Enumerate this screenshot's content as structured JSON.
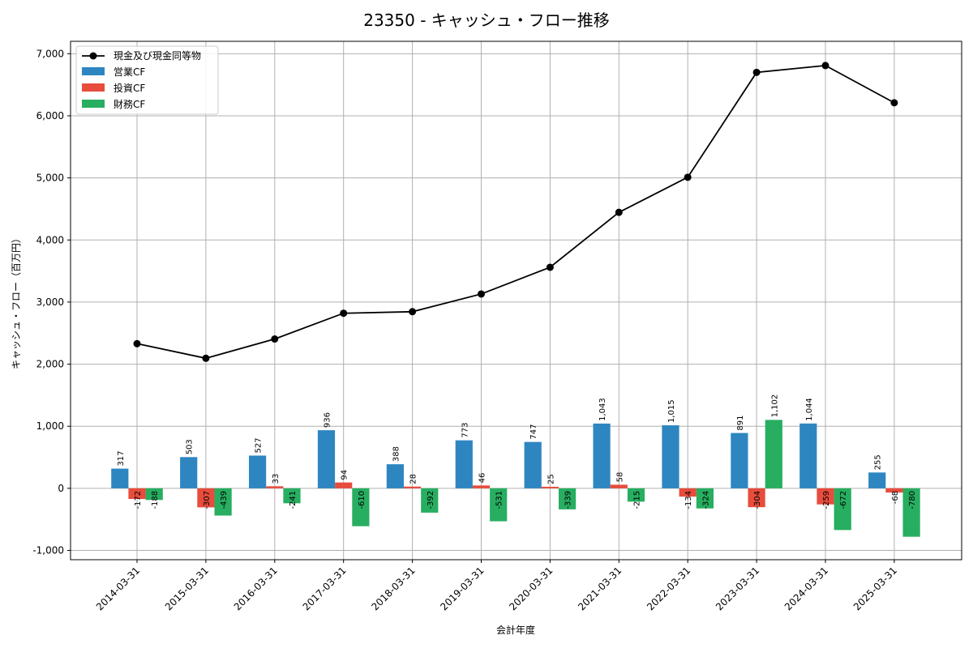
{
  "chart_data": {
    "type": "bar",
    "title": "23350 - キャッシュ・フロー推移",
    "xlabel": "会計年度",
    "ylabel": "キャッシュ・フロー（百万円）",
    "ylim": [
      -1150,
      7200
    ],
    "yticks": [
      -1000,
      0,
      1000,
      2000,
      3000,
      4000,
      5000,
      6000,
      7000
    ],
    "ytick_labels": [
      "-1,000",
      "0",
      "1,000",
      "2,000",
      "3,000",
      "4,000",
      "5,000",
      "6,000",
      "7,000"
    ],
    "grid": true,
    "legend_position": "top-left",
    "categories": [
      "2014-03-31",
      "2015-03-31",
      "2016-03-31",
      "2017-03-31",
      "2018-03-31",
      "2019-03-31",
      "2020-03-31",
      "2021-03-31",
      "2022-03-31",
      "2023-03-31",
      "2024-03-31",
      "2025-03-31"
    ],
    "line": {
      "name": "現金及び現金同等物",
      "color": "#000000",
      "values": [
        2330,
        2095,
        2405,
        2820,
        2845,
        3130,
        3560,
        4445,
        5010,
        6700,
        6810,
        6210
      ]
    },
    "series": [
      {
        "name": "営業CF",
        "color": "#2e86c1",
        "values": [
          317,
          503,
          527,
          936,
          388,
          773,
          747,
          1043,
          1015,
          891,
          1044,
          255
        ],
        "labels": [
          "317",
          "503",
          "527",
          "936",
          "388",
          "773",
          "747",
          "1,043",
          "1,015",
          "891",
          "1,044",
          "255"
        ]
      },
      {
        "name": "投資CF",
        "color": "#e74c3c",
        "values": [
          -172,
          -307,
          33,
          94,
          28,
          46,
          25,
          58,
          -134,
          -304,
          -259,
          -68
        ],
        "labels": [
          "-172",
          "-307",
          "33",
          "94",
          "28",
          "46",
          "25",
          "58",
          "-134",
          "-304",
          "-259",
          "-68"
        ]
      },
      {
        "name": "財務CF",
        "color": "#27ae60",
        "values": [
          -188,
          -439,
          -241,
          -610,
          -392,
          -531,
          -339,
          -215,
          -324,
          1102,
          -672,
          -780
        ],
        "labels": [
          "-188",
          "-439",
          "-241",
          "-610",
          "-392",
          "-531",
          "-339",
          "-215",
          "-324",
          "1,102",
          "-672",
          "-780"
        ]
      }
    ]
  }
}
